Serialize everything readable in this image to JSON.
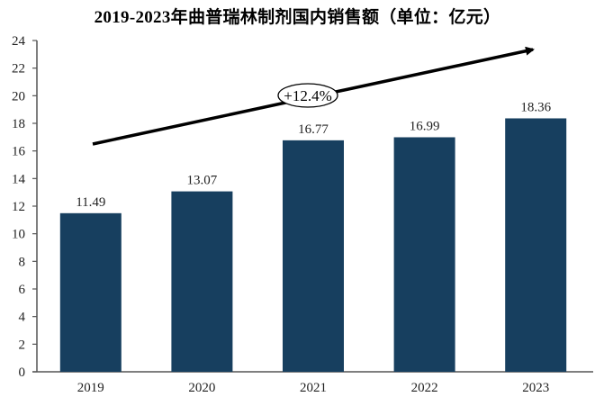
{
  "title": "2019-2023年曲普瑞林制剂国内销售额（单位：亿元）",
  "colors": {
    "bar": "#173f5f",
    "axis": "#555555",
    "arrow": "#000000"
  },
  "annotation": {
    "cagr_label": "+12.4%",
    "arrow": "trend-up"
  },
  "chart_data": {
    "type": "bar",
    "title": "2019-2023年曲普瑞林制剂国内销售额（单位：亿元）",
    "xlabel": "",
    "ylabel": "",
    "categories": [
      "2019",
      "2020",
      "2021",
      "2022",
      "2023"
    ],
    "values": [
      11.49,
      13.07,
      16.77,
      16.99,
      18.36
    ],
    "data_labels": [
      "11.49",
      "13.07",
      "16.77",
      "16.99",
      "18.36"
    ],
    "ylim": [
      0,
      24
    ],
    "yticks": [
      0,
      2,
      4,
      6,
      8,
      10,
      12,
      14,
      16,
      18,
      20,
      22,
      24
    ],
    "grid": false,
    "legend": null,
    "annotations": [
      "+12.4% (CAGR, upward trend arrow)"
    ]
  }
}
